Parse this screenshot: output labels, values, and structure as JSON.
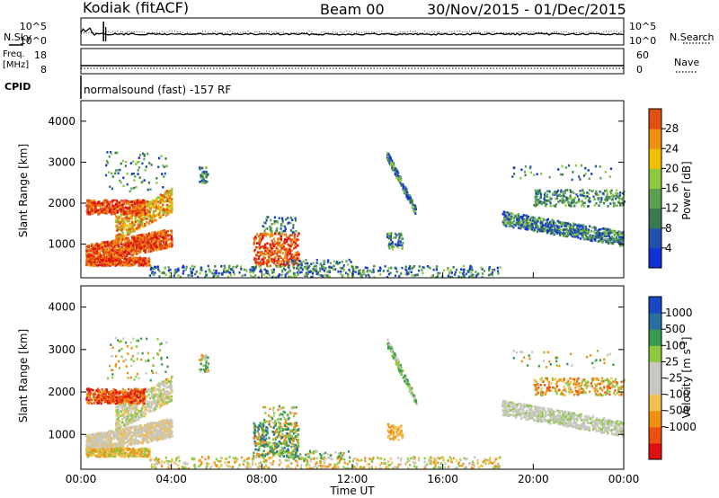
{
  "header": {
    "station": "Kodiak (fitACF)",
    "beam": "Beam 00",
    "date_range": "30/Nov/2015 - 01/Dec/2015"
  },
  "side_labels": {
    "nsky": "N.Sky",
    "nsearch": "N.Search",
    "freq": "Freq.",
    "freq_unit": "[MHz]",
    "nave": "Nave",
    "cpid": "CPID"
  },
  "cpid_text": "normalsound (fast) -157 RF",
  "colors": {
    "power_scale": [
      "#1030d8",
      "#2050b0",
      "#3a7a52",
      "#5aa050",
      "#8cc840",
      "#f0c000",
      "#f09010",
      "#e05010",
      "#e01010"
    ],
    "velocity_scale": [
      "#e01010",
      "#ee5010",
      "#f09010",
      "#f0c050",
      "#c8c8c0",
      "#c8c8c0",
      "#8cc840",
      "#3a9a50",
      "#2870a0",
      "#1848c8"
    ],
    "grid_gray": "#c8c8c0"
  },
  "chart_data": [
    {
      "type": "line",
      "panel": "noise",
      "ylabel_left": "N.Sky",
      "ylabel_right": "N.Search",
      "yticks_left": [
        "10^5",
        "10^0"
      ],
      "yticks_right": [
        "10^5",
        "10^0"
      ]
    },
    {
      "type": "line",
      "panel": "frequency",
      "ylabel_left": "Freq. [MHz]",
      "ylabel_right": "Nave",
      "yticks_left": [
        "18",
        "8"
      ],
      "yticks_right": [
        "60",
        "0"
      ]
    },
    {
      "type": "heatmap",
      "panel": "power",
      "ylabel": "Slant Range [km]",
      "ylim": [
        180,
        4500
      ],
      "yticks": [
        "1000",
        "2000",
        "3000",
        "4000"
      ],
      "colorbar_label": "Power [dB]",
      "colorbar_ticks": [
        "4",
        "8",
        "12",
        "16",
        "20",
        "24",
        "28"
      ],
      "xlabel": "Time UT",
      "xticks": [
        "00:00",
        "04:00",
        "08:00",
        "12:00",
        "16:00",
        "20:00",
        "00:00"
      ],
      "regions": [
        {
          "t0": 0.2,
          "t1": 4.0,
          "r0": 500,
          "r1": 1400,
          "level": "high"
        },
        {
          "t0": 0.2,
          "t1": 3.0,
          "r0": 1750,
          "r1": 2100,
          "level": "high"
        },
        {
          "t0": 1.5,
          "t1": 4.0,
          "r0": 1400,
          "r1": 2500,
          "level": "medium"
        },
        {
          "t0": 7.5,
          "t1": 9.5,
          "r0": 500,
          "r1": 1300,
          "level": "high"
        },
        {
          "t0": 13.5,
          "t1": 14.8,
          "r0": 1800,
          "r1": 3200,
          "level": "low"
        },
        {
          "t0": 18.5,
          "t1": 24.0,
          "r0": 900,
          "r1": 1700,
          "level": "low"
        },
        {
          "t0": 20.0,
          "t1": 24.0,
          "r0": 1900,
          "r1": 2400,
          "level": "low"
        }
      ]
    },
    {
      "type": "heatmap",
      "panel": "velocity",
      "ylabel": "Slant Range [km]",
      "ylim": [
        180,
        4500
      ],
      "yticks": [
        "1000",
        "2000",
        "3000",
        "4000"
      ],
      "colorbar_label": "Velocity [m s^-1]",
      "colorbar_ticks": [
        "1000",
        "500",
        "100",
        "25",
        "-25",
        "-100",
        "-500",
        "-1000"
      ],
      "xlabel": "Time UT",
      "xticks": [
        "00:00",
        "04:00",
        "08:00",
        "12:00",
        "16:00",
        "20:00",
        "00:00"
      ]
    }
  ]
}
